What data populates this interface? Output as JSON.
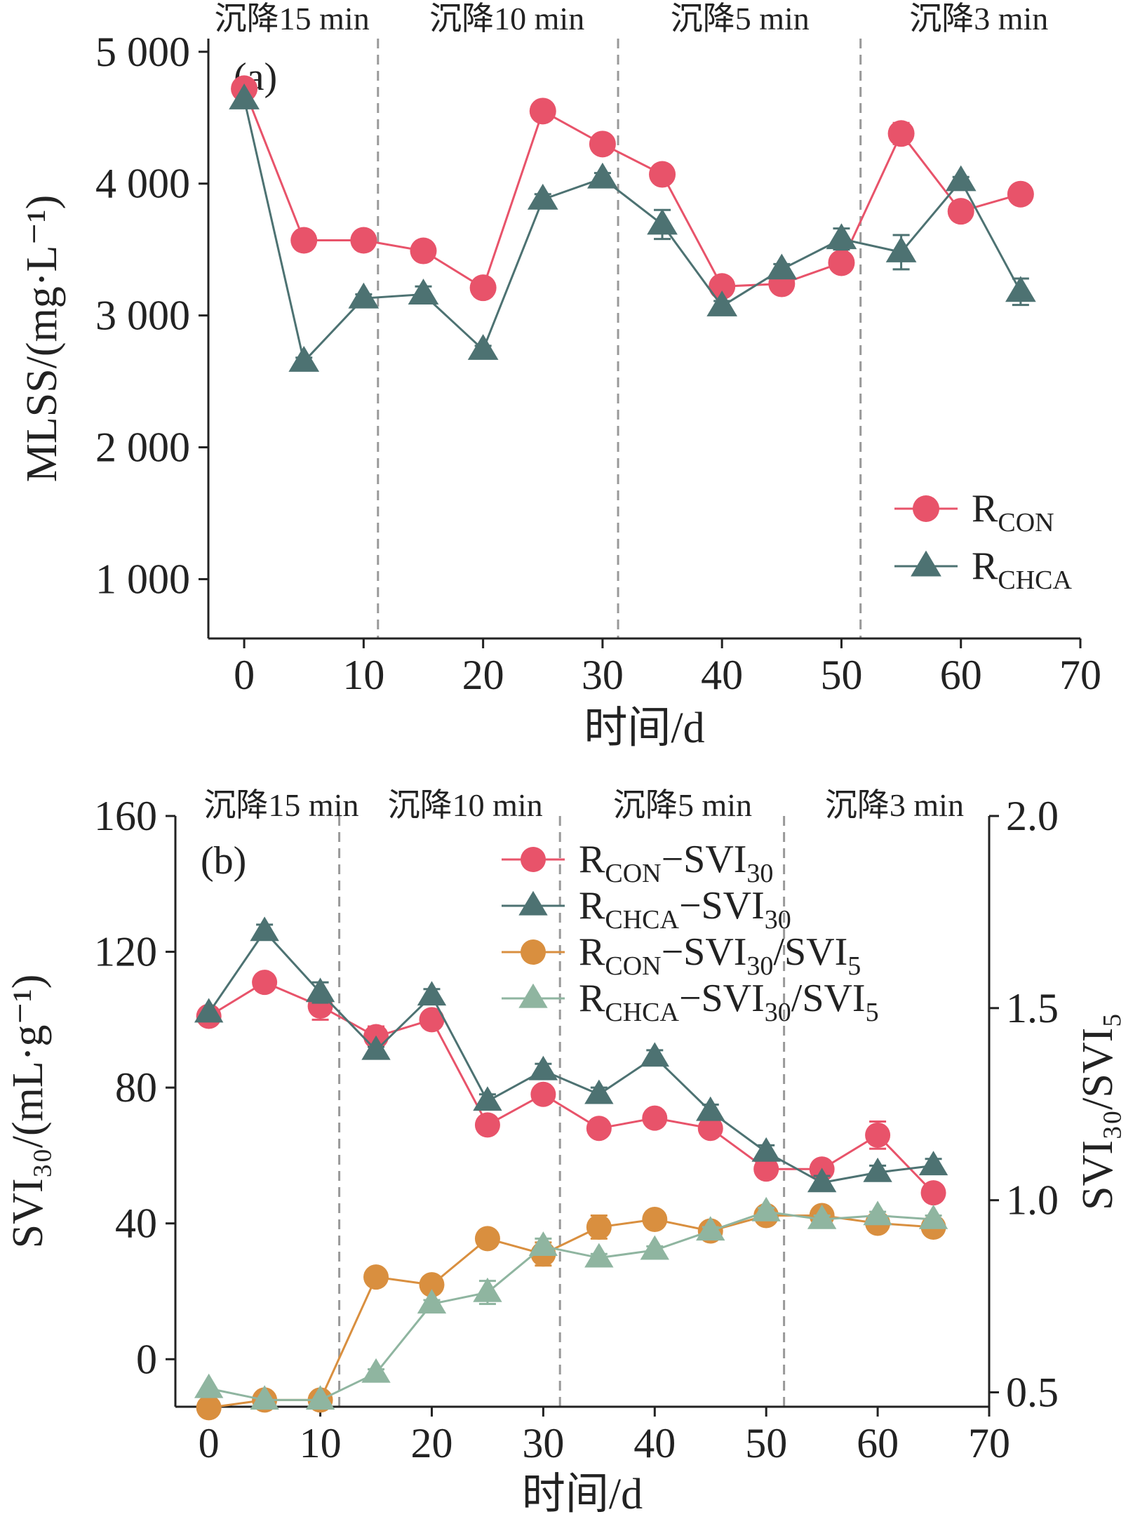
{
  "colors": {
    "con": "#e8536a",
    "chca": "#4d7272",
    "con_ratio": "#d98f3f",
    "chca_ratio": "#8fb5a0",
    "axis": "#222222",
    "divider": "#999999"
  },
  "chart_data": [
    {
      "type": "line",
      "panel_label": "(a)",
      "xlabel": "时间/d",
      "ylabel": "MLSS/(mg·L⁻¹)",
      "xlim": [
        -3,
        70
      ],
      "ylim": [
        550,
        5100
      ],
      "x_ticks": [
        0,
        10,
        20,
        30,
        40,
        50,
        60,
        70
      ],
      "x_tick_labels": [
        "0",
        "10",
        "20",
        "30",
        "40",
        "50",
        "60",
        "70"
      ],
      "y_ticks": [
        1000,
        2000,
        3000,
        4000,
        5000
      ],
      "y_tick_labels": [
        "1 000",
        "2 000",
        "3 000",
        "4 000",
        "5 000"
      ],
      "phase_boundaries": [
        11.2,
        31.3,
        51.6
      ],
      "phases": [
        {
          "label": "沉降15 min",
          "center": 4
        },
        {
          "label": "沉降10 min",
          "center": 22
        },
        {
          "label": "沉降5 min",
          "center": 41.5
        },
        {
          "label": "沉降3 min",
          "center": 61.5
        }
      ],
      "legend": {
        "position": "bottom-right"
      },
      "x": [
        0,
        5,
        10,
        15,
        20,
        25,
        30,
        35,
        40,
        45,
        50,
        55,
        60,
        65
      ],
      "series": [
        {
          "name": "R",
          "name_sub": "CON",
          "marker": "circle",
          "color_key": "con",
          "values": [
            4720,
            3570,
            3570,
            3490,
            3210,
            4550,
            4300,
            4070,
            3220,
            3240,
            3400,
            4380,
            3790,
            3920
          ],
          "errors": [
            0,
            30,
            25,
            30,
            60,
            60,
            40,
            40,
            40,
            40,
            50,
            80,
            40,
            40
          ]
        },
        {
          "name": "R",
          "name_sub": "CHCA",
          "marker": "triangle",
          "color_key": "chca",
          "values": [
            4640,
            2650,
            3130,
            3160,
            2740,
            3880,
            4040,
            3690,
            3070,
            3350,
            3580,
            3480,
            4020,
            3180
          ],
          "errors": [
            0,
            30,
            30,
            60,
            30,
            40,
            40,
            110,
            40,
            40,
            80,
            130,
            30,
            100
          ]
        }
      ]
    },
    {
      "type": "line",
      "panel_label": "(b)",
      "xlabel": "时间/d",
      "ylabel": "SVI₃₀/(mL·g⁻¹)",
      "y2label": "SVI₃₀/SVI₅",
      "xlim": [
        -3,
        70
      ],
      "ylim": [
        -14,
        160
      ],
      "y2lim": [
        0.4625,
        2.0
      ],
      "x_ticks": [
        0,
        10,
        20,
        30,
        40,
        50,
        60,
        70
      ],
      "x_tick_labels": [
        "0",
        "10",
        "20",
        "30",
        "40",
        "50",
        "60",
        "70"
      ],
      "y_ticks": [
        0,
        40,
        80,
        120,
        160
      ],
      "y_tick_labels": [
        "0",
        "40",
        "80",
        "120",
        "160"
      ],
      "y2_ticks": [
        0.5,
        1.0,
        1.5,
        2.0
      ],
      "y2_tick_labels": [
        "0.5",
        "1.0",
        "1.5",
        "2.0"
      ],
      "phase_boundaries": [
        11.7,
        31.5,
        51.6
      ],
      "phases": [
        {
          "label": "沉降15 min",
          "center": 6.5
        },
        {
          "label": "沉降10 min",
          "center": 23
        },
        {
          "label": "沉降5 min",
          "center": 42.5
        },
        {
          "label": "沉降3 min",
          "center": 61.5
        }
      ],
      "legend": {
        "position": "top-center"
      },
      "x": [
        0,
        5,
        10,
        15,
        20,
        25,
        30,
        35,
        40,
        45,
        50,
        55,
        60,
        65
      ],
      "series": [
        {
          "name": "R",
          "name_sub": "CON",
          "name_suffix": "−SVI",
          "suffix_sub": "30",
          "marker": "circle",
          "color_key": "con",
          "axis": "left",
          "values": [
            101,
            111,
            104,
            95,
            100,
            69,
            78,
            68,
            71,
            68,
            56,
            56,
            66,
            49
          ],
          "errors": [
            0,
            1,
            4,
            3,
            2,
            2,
            2,
            2,
            2,
            2,
            1,
            2,
            4,
            1
          ]
        },
        {
          "name": "R",
          "name_sub": "CHCA",
          "name_suffix": "−SVI",
          "suffix_sub": "30",
          "marker": "triangle",
          "color_key": "chca",
          "axis": "left",
          "values": [
            102,
            126,
            108,
            91,
            107,
            76,
            85,
            78,
            89,
            73,
            61,
            52,
            55,
            57
          ],
          "errors": [
            0,
            2,
            3,
            1,
            2,
            2,
            2,
            2,
            2,
            2,
            2,
            2,
            2,
            2
          ]
        },
        {
          "name": "R",
          "name_sub": "CON",
          "name_suffix": "−SVI",
          "suffix_sub": "30",
          "tail": "/SVI",
          "tail_sub": "5",
          "marker": "circle",
          "color_key": "con_ratio",
          "axis": "right",
          "values": [
            0.46,
            0.48,
            0.48,
            0.8,
            0.78,
            0.9,
            0.86,
            0.93,
            0.95,
            0.92,
            0.96,
            0.96,
            0.94,
            0.93
          ],
          "errors": [
            0,
            0,
            0,
            0.01,
            0.01,
            0.02,
            0.03,
            0.03,
            0.01,
            0.01,
            0.01,
            0.01,
            0.02,
            0.02
          ]
        },
        {
          "name": "R",
          "name_sub": "CHCA",
          "name_suffix": "−SVI",
          "suffix_sub": "30",
          "tail": "/SVI",
          "tail_sub": "5",
          "marker": "triangle",
          "color_key": "chca_ratio",
          "axis": "right",
          "values": [
            0.51,
            0.48,
            0.48,
            0.55,
            0.73,
            0.76,
            0.88,
            0.85,
            0.87,
            0.92,
            0.97,
            0.95,
            0.96,
            0.95
          ],
          "errors": [
            0,
            0,
            0,
            0.01,
            0.01,
            0.03,
            0.02,
            0.01,
            0.01,
            0.01,
            0.01,
            0.01,
            0.01,
            0.01
          ]
        }
      ]
    }
  ]
}
